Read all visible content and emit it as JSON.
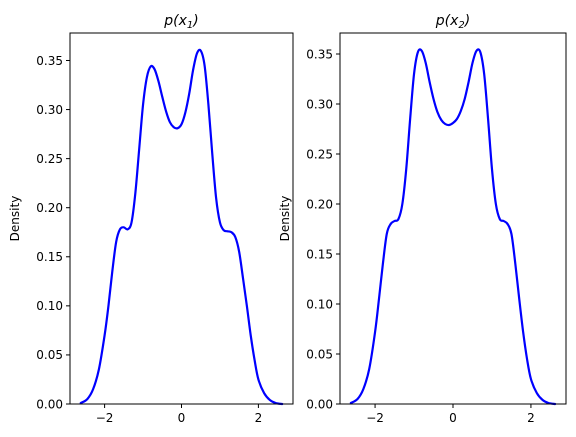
{
  "figure": {
    "background": "#ffffff"
  },
  "chart_data": [
    {
      "type": "line",
      "title": "p(x1)",
      "title_base": "p(x",
      "title_sub": "1",
      "title_end": ")",
      "xlabel": "",
      "ylabel": "Density",
      "xlim": [
        -2.9,
        2.9
      ],
      "ylim": [
        0.0,
        0.378
      ],
      "xticks": [
        -2,
        0,
        2
      ],
      "xtick_labels": [
        "−2",
        "0",
        "2"
      ],
      "yticks": [
        0.0,
        0.05,
        0.1,
        0.15,
        0.2,
        0.25,
        0.3,
        0.35
      ],
      "ytick_labels": [
        "0.00",
        "0.05",
        "0.10",
        "0.15",
        "0.20",
        "0.25",
        "0.30",
        "0.35"
      ],
      "grid": false,
      "series": [
        {
          "color": "#0000ff",
          "x": [
            -2.62,
            -2.45,
            -2.3,
            -2.15,
            -2.0,
            -1.9,
            -1.8,
            -1.7,
            -1.6,
            -1.5,
            -1.4,
            -1.3,
            -1.2,
            -1.1,
            -1.0,
            -0.9,
            -0.8,
            -0.7,
            -0.6,
            -0.5,
            -0.4,
            -0.3,
            -0.2,
            -0.1,
            0.0,
            0.1,
            0.2,
            0.3,
            0.4,
            0.5,
            0.6,
            0.7,
            0.8,
            0.9,
            1.0,
            1.1,
            1.2,
            1.3,
            1.4,
            1.5,
            1.6,
            1.7,
            1.8,
            1.9,
            2.0,
            2.15,
            2.3,
            2.45,
            2.62
          ],
          "y": [
            0.001,
            0.005,
            0.015,
            0.035,
            0.07,
            0.1,
            0.135,
            0.165,
            0.178,
            0.18,
            0.178,
            0.185,
            0.215,
            0.26,
            0.305,
            0.333,
            0.344,
            0.341,
            0.329,
            0.313,
            0.298,
            0.287,
            0.282,
            0.281,
            0.285,
            0.297,
            0.316,
            0.34,
            0.357,
            0.36,
            0.345,
            0.305,
            0.255,
            0.21,
            0.185,
            0.177,
            0.176,
            0.175,
            0.17,
            0.155,
            0.128,
            0.1,
            0.07,
            0.045,
            0.025,
            0.011,
            0.004,
            0.001,
            0.0
          ]
        }
      ]
    },
    {
      "type": "line",
      "title": "p(x2)",
      "title_base": "p(x",
      "title_sub": "2",
      "title_end": ")",
      "xlabel": "",
      "ylabel": "Density",
      "xlim": [
        -2.9,
        2.9
      ],
      "ylim": [
        0.0,
        0.371
      ],
      "xticks": [
        -2,
        0,
        2
      ],
      "xtick_labels": [
        "−2",
        "0",
        "2"
      ],
      "yticks": [
        0.0,
        0.05,
        0.1,
        0.15,
        0.2,
        0.25,
        0.3,
        0.35
      ],
      "ytick_labels": [
        "0.00",
        "0.05",
        "0.10",
        "0.15",
        "0.20",
        "0.25",
        "0.30",
        "0.35"
      ],
      "grid": false,
      "series": [
        {
          "color": "#0000ff",
          "x": [
            -2.62,
            -2.45,
            -2.3,
            -2.15,
            -2.0,
            -1.9,
            -1.8,
            -1.7,
            -1.6,
            -1.5,
            -1.4,
            -1.3,
            -1.2,
            -1.1,
            -1.0,
            -0.9,
            -0.8,
            -0.7,
            -0.6,
            -0.5,
            -0.4,
            -0.3,
            -0.2,
            -0.1,
            0.0,
            0.1,
            0.2,
            0.3,
            0.4,
            0.5,
            0.6,
            0.7,
            0.8,
            0.9,
            1.0,
            1.1,
            1.2,
            1.3,
            1.4,
            1.5,
            1.6,
            1.7,
            1.8,
            1.9,
            2.0,
            2.15,
            2.3,
            2.45,
            2.62
          ],
          "y": [
            0.001,
            0.005,
            0.015,
            0.035,
            0.072,
            0.105,
            0.14,
            0.17,
            0.18,
            0.183,
            0.185,
            0.2,
            0.235,
            0.285,
            0.33,
            0.352,
            0.353,
            0.341,
            0.322,
            0.305,
            0.292,
            0.284,
            0.28,
            0.279,
            0.281,
            0.285,
            0.293,
            0.305,
            0.322,
            0.341,
            0.353,
            0.352,
            0.33,
            0.285,
            0.235,
            0.2,
            0.185,
            0.183,
            0.18,
            0.17,
            0.14,
            0.105,
            0.072,
            0.045,
            0.025,
            0.011,
            0.004,
            0.001,
            0.0
          ]
        }
      ]
    }
  ]
}
